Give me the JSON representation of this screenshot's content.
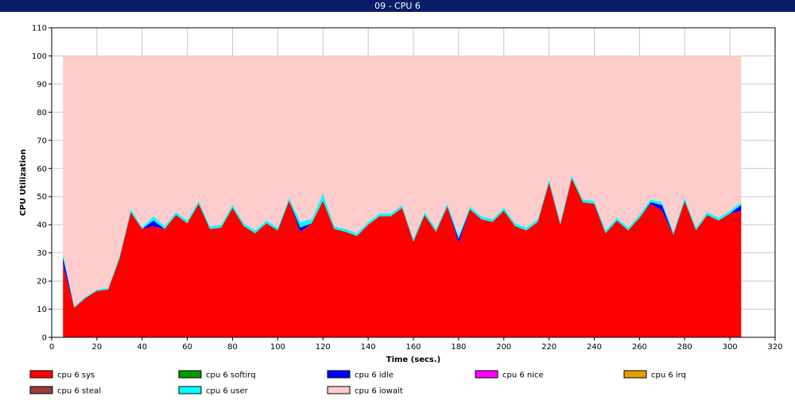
{
  "window": {
    "title": "09 - CPU 6"
  },
  "chart_data": {
    "type": "area",
    "stacked": true,
    "xlabel": "Time (secs.)",
    "ylabel": "CPU Utilization",
    "xlim": [
      0,
      320
    ],
    "ylim": [
      0,
      110
    ],
    "xticks": [
      0,
      20,
      40,
      60,
      80,
      100,
      120,
      140,
      160,
      180,
      200,
      220,
      240,
      260,
      280,
      300,
      320
    ],
    "yticks": [
      0,
      10,
      20,
      30,
      40,
      50,
      60,
      70,
      80,
      90,
      100,
      110
    ],
    "grid": true,
    "legend_position": "bottom",
    "x": [
      5,
      10,
      15,
      20,
      25,
      30,
      35,
      40,
      45,
      50,
      55,
      60,
      65,
      70,
      75,
      80,
      85,
      90,
      95,
      100,
      105,
      110,
      115,
      120,
      125,
      130,
      135,
      140,
      145,
      150,
      155,
      160,
      165,
      170,
      175,
      180,
      185,
      190,
      195,
      200,
      205,
      210,
      215,
      220,
      225,
      230,
      235,
      240,
      245,
      250,
      255,
      260,
      265,
      270,
      275,
      280,
      285,
      290,
      295,
      300,
      305
    ],
    "series": [
      {
        "name": "cpu 6 sys",
        "color": "#ff0000",
        "values": [
          26,
          10.5,
          14,
          16.5,
          17,
          28,
          44.5,
          38.5,
          39.5,
          38.5,
          43.5,
          40.5,
          47.5,
          38.5,
          39,
          46,
          39.5,
          37,
          40.5,
          38,
          48.5,
          37.5,
          40.5,
          48.5,
          38.5,
          37.5,
          36,
          40,
          43,
          43,
          46,
          34,
          43.5,
          37.5,
          46.5,
          33.5,
          45.5,
          42,
          41,
          45,
          39.5,
          38,
          41,
          55,
          40,
          56.5,
          48,
          47.5,
          37,
          41.5,
          38,
          42.5,
          47.5,
          45,
          36.5,
          48.5,
          38,
          43.5,
          41.5,
          44,
          45
        ]
      },
      {
        "name": "cpu 6 softirq",
        "color": "#009900",
        "values": [
          0,
          0,
          0,
          0,
          0,
          0,
          0,
          0,
          0,
          0,
          0,
          0,
          0,
          0,
          0,
          0,
          0,
          0,
          0,
          0,
          0,
          0,
          0,
          0,
          0,
          0,
          0,
          0,
          0,
          0,
          0,
          0,
          0,
          0,
          0,
          0,
          0,
          0,
          0,
          0,
          0,
          0,
          0,
          0,
          0,
          0,
          0,
          0,
          0,
          0,
          0,
          0,
          0,
          0,
          0,
          0,
          0,
          0,
          0,
          0,
          0
        ]
      },
      {
        "name": "cpu 6 idle",
        "color": "#0000ff",
        "values": [
          2.5,
          0,
          0,
          0,
          0,
          0,
          0,
          0,
          2,
          0,
          0,
          0,
          0,
          0,
          0,
          0,
          0,
          0,
          0,
          0,
          0,
          1.5,
          0,
          0,
          0,
          0,
          0,
          0,
          0,
          0,
          0,
          0,
          0,
          0,
          0,
          1.5,
          0,
          0,
          0,
          0,
          0,
          0,
          0,
          0,
          0,
          0,
          0,
          0,
          0,
          0,
          0,
          0,
          0.5,
          2,
          0,
          0,
          0,
          0,
          0,
          0,
          2
        ]
      },
      {
        "name": "cpu 6 nice",
        "color": "#ff00ff",
        "values": [
          0,
          0,
          0,
          0,
          0,
          0,
          0,
          0,
          0,
          0,
          0,
          0,
          0,
          0,
          0,
          0,
          0,
          0,
          0,
          0,
          0,
          0,
          0,
          0,
          0,
          0,
          0,
          0,
          0,
          0,
          0,
          0,
          0,
          0,
          0,
          0,
          0,
          0,
          0,
          0,
          0,
          0,
          0,
          0,
          0,
          0,
          0,
          0,
          0,
          0,
          0,
          0,
          0,
          0,
          0,
          0,
          0,
          0,
          0,
          0,
          0
        ]
      },
      {
        "name": "cpu 6 irq",
        "color": "#e59e00",
        "values": [
          0,
          0,
          0,
          0,
          0,
          0,
          0,
          0,
          0,
          0,
          0,
          0,
          0,
          0,
          0,
          0,
          0,
          0,
          0,
          0,
          0,
          0,
          0,
          0,
          0,
          0,
          0,
          0,
          0,
          0,
          0,
          0,
          0,
          0,
          0,
          0,
          0,
          0,
          0,
          0,
          0,
          0,
          0,
          0,
          0,
          0,
          0,
          0,
          0,
          0,
          0,
          0,
          0,
          0,
          0,
          0,
          0,
          0,
          0,
          0,
          0
        ]
      },
      {
        "name": "cpu 6 steal",
        "color": "#9c3c3c",
        "values": [
          0,
          0,
          0,
          0,
          0,
          0,
          0,
          0,
          0,
          0,
          0,
          0,
          0,
          0,
          0,
          0,
          0,
          0,
          0,
          0,
          0,
          0,
          0,
          0,
          0,
          0,
          0,
          0,
          0,
          0,
          0,
          0,
          0,
          0,
          0,
          0,
          0,
          0,
          0,
          0,
          0,
          0,
          0,
          0,
          0,
          0,
          0,
          0,
          0,
          0,
          0,
          0,
          0,
          0,
          0,
          0,
          0,
          0,
          0,
          0,
          0
        ]
      },
      {
        "name": "cpu 6 user",
        "color": "#00ffff",
        "values": [
          1,
          0.5,
          0.5,
          0.5,
          0.5,
          1,
          1,
          0.5,
          1.5,
          1,
          1,
          1,
          1,
          1,
          1,
          1,
          1,
          1,
          1,
          1,
          1,
          2,
          1.5,
          2.5,
          1,
          1,
          1,
          1,
          1,
          1,
          1,
          1,
          1,
          1,
          1,
          1,
          1,
          1,
          1,
          1,
          1,
          1,
          1,
          1,
          1,
          1,
          1,
          1,
          1,
          1,
          1,
          1,
          1,
          1,
          1,
          1,
          1,
          1,
          1,
          1,
          1
        ]
      },
      {
        "name": "cpu 6 iowait",
        "color": "#ffcccc",
        "values": [
          70.5,
          89,
          85.5,
          83,
          82.5,
          71,
          54.5,
          61,
          57,
          60.5,
          55.5,
          58.5,
          51.5,
          60.5,
          60,
          53,
          59.5,
          62,
          58.5,
          61,
          50.5,
          59,
          58,
          49,
          60.5,
          61.5,
          63,
          59,
          56,
          56,
          53,
          65,
          55.5,
          61.5,
          52.5,
          64,
          53.5,
          57,
          58,
          54,
          59.5,
          61,
          58,
          44,
          59,
          42.5,
          51,
          51.5,
          62,
          57.5,
          61,
          56.5,
          51,
          52,
          62.5,
          50.5,
          61,
          55.5,
          57.5,
          55,
          52
        ]
      }
    ]
  }
}
